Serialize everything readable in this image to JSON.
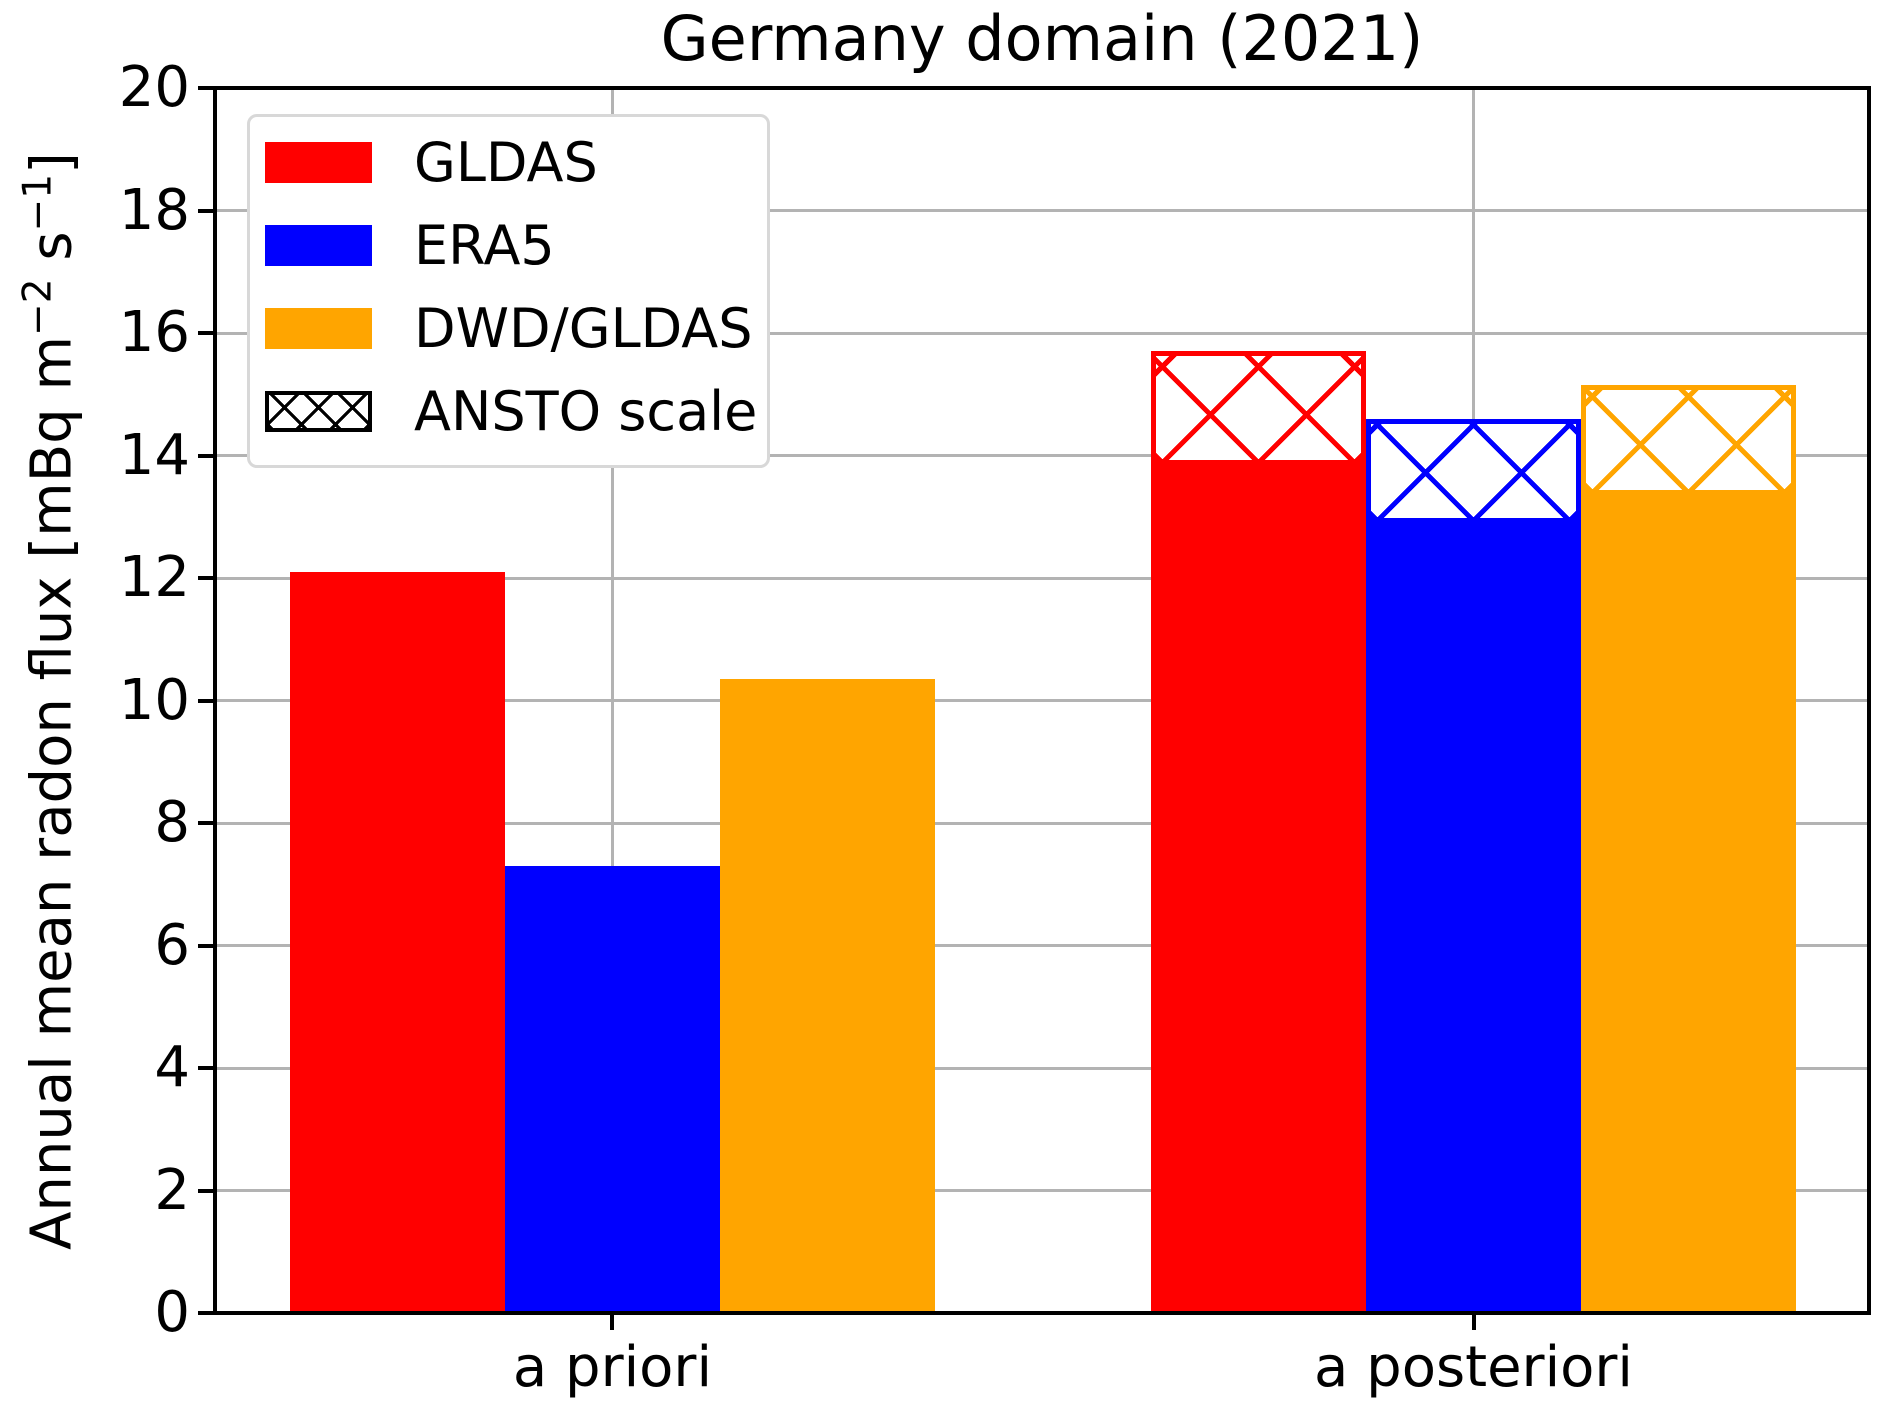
{
  "figure_title": "Germany domain (2021)",
  "chart_data": {
    "type": "bar",
    "title": "Germany domain (2021)",
    "xlabel": "",
    "ylabel": "Annual mean radon flux [mBq m−2 s−1]",
    "ylabel_parts": {
      "prefix": "Annual mean radon flux [mBq m",
      "sup1": "−2",
      "mid": " s",
      "sup2": "−1",
      "suffix": "]"
    },
    "categories": [
      "a priori",
      "a posteriori"
    ],
    "series": [
      {
        "name": "GLDAS",
        "color": "#ff0000",
        "values": [
          12.1,
          13.9
        ],
        "ansto_scale_values": [
          null,
          15.7
        ]
      },
      {
        "name": "ERA5",
        "color": "#0000ff",
        "values": [
          7.3,
          12.95
        ],
        "ansto_scale_values": [
          null,
          14.6
        ]
      },
      {
        "name": "DWD/GLDAS",
        "color": "#ffa500",
        "values": [
          10.35,
          13.4
        ],
        "ansto_scale_values": [
          null,
          15.15
        ]
      }
    ],
    "legend_entries": [
      {
        "label": "GLDAS",
        "color": "#ff0000",
        "hatched": false
      },
      {
        "label": "ERA5",
        "color": "#0000ff",
        "hatched": false
      },
      {
        "label": "DWD/GLDAS",
        "color": "#ffa500",
        "hatched": false
      },
      {
        "label": "ANSTO scale",
        "color": "#000000",
        "hatched": true
      }
    ],
    "legend_position": "upper left",
    "ylim": [
      0,
      20
    ],
    "ytick_step": 2,
    "yticks": [
      0,
      2,
      4,
      6,
      8,
      10,
      12,
      14,
      16,
      18,
      20
    ],
    "grid": true,
    "colors": {
      "gridline": "#b3b3b3",
      "spine": "#000000",
      "background": "#ffffff"
    }
  }
}
